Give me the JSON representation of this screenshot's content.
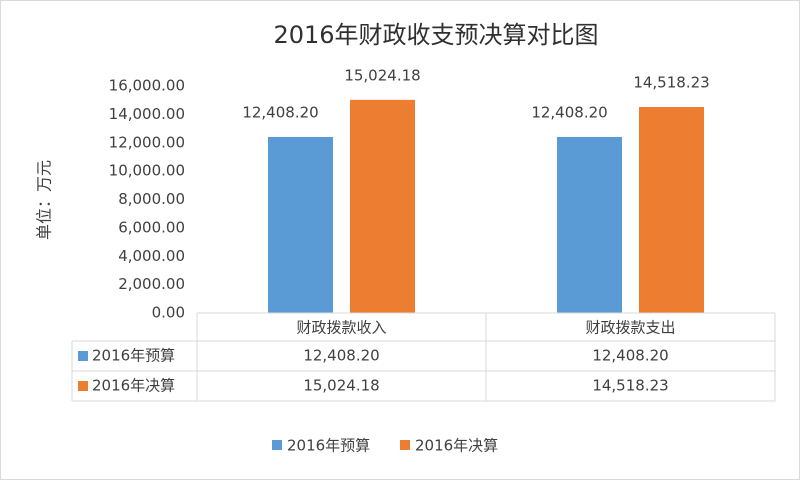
{
  "chart_data": {
    "type": "bar",
    "title": "2016年财政收支预决算对比图",
    "y_label": "单位：万元",
    "categories": [
      "财政拨款收入",
      "财政拨款支出"
    ],
    "series": [
      {
        "name": "2016年预算",
        "color": "#5b9bd5",
        "values": [
          12408.2,
          12408.2
        ],
        "value_labels": [
          "12,408.20",
          "12,408.20"
        ]
      },
      {
        "name": "2016年决算",
        "color": "#ed7d31",
        "values": [
          15024.18,
          14518.23
        ],
        "value_labels": [
          "15,024.18",
          "14,518.23"
        ]
      }
    ],
    "ylim": [
      0,
      16000
    ],
    "yticks": [
      {
        "value": 0,
        "label": "0.00"
      },
      {
        "value": 2000,
        "label": "2,000.00"
      },
      {
        "value": 4000,
        "label": "4,000.00"
      },
      {
        "value": 6000,
        "label": "6,000.00"
      },
      {
        "value": 8000,
        "label": "8,000.00"
      },
      {
        "value": 10000,
        "label": "10,000.00"
      },
      {
        "value": 12000,
        "label": "12,000.00"
      },
      {
        "value": 14000,
        "label": "14,000.00"
      },
      {
        "value": 16000,
        "label": "16,000.00"
      }
    ],
    "grid": false,
    "legend": "bottom"
  }
}
